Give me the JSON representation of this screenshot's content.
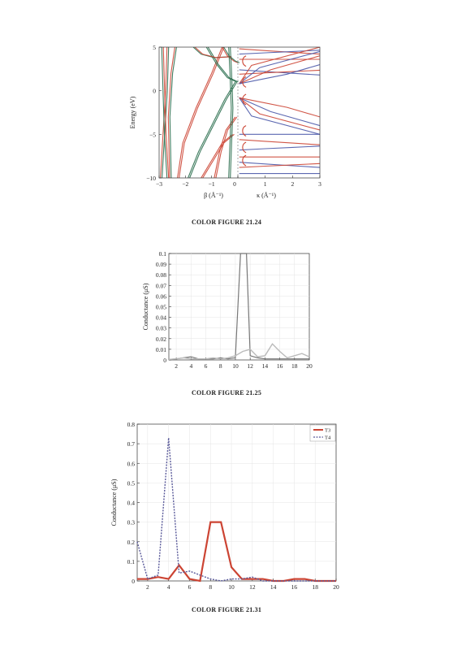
{
  "chart_data": [
    {
      "type": "line",
      "caption": "COLOR FIGURE 21.24",
      "ylabel": "Energy (eV)",
      "left_xlabel": "β (Å⁻¹)",
      "right_xlabel": "κ (Å⁻¹)",
      "left_xlim": [
        -3,
        0
      ],
      "right_xlim": [
        0,
        3
      ],
      "ylim": [
        -10,
        5
      ],
      "left_xticks": [
        "−3",
        "−2",
        "−1",
        "0"
      ],
      "right_xticks": [
        "0",
        "1",
        "2",
        "3"
      ],
      "yticks": [
        "5",
        "0",
        "−5",
        "−10"
      ],
      "colors": {
        "red": "#cc4433",
        "green": "#2a6e4e",
        "blue": "#4a58a8"
      }
    },
    {
      "type": "line",
      "caption": "COLOR FIGURE 21.25",
      "ylabel": "Conductance (μS)",
      "xlim": [
        1,
        20
      ],
      "ylim": [
        0,
        0.1
      ],
      "xticks": [
        "2",
        "4",
        "6",
        "8",
        "10",
        "12",
        "14",
        "16",
        "18",
        "20"
      ],
      "yticks": [
        "0",
        "0.01",
        "0.02",
        "0.03",
        "0.04",
        "0.05",
        "0.06",
        "0.07",
        "0.08",
        "0.09",
        "0.1"
      ],
      "series": [
        {
          "color": "#777777",
          "x": [
            1,
            2,
            3,
            4,
            5,
            6,
            7,
            8,
            9,
            10,
            10.7,
            11.5,
            12,
            13,
            14,
            15,
            16,
            17,
            18,
            19,
            20
          ],
          "y": [
            0.0005,
            0.001,
            0.002,
            0.003,
            0.001,
            0.001,
            0.001,
            0.002,
            0.001,
            0.002,
            0.1,
            0.1,
            0.004,
            0.002,
            0.001,
            0.001,
            0.001,
            0.001,
            0.001,
            0.001,
            0.001
          ]
        },
        {
          "color": "#bbbbbb",
          "x": [
            1,
            2,
            3,
            4,
            5,
            6,
            7,
            8,
            9,
            10,
            11,
            12,
            13,
            14,
            15,
            16,
            17,
            18,
            19,
            20
          ],
          "y": [
            0.0005,
            0.001,
            0.002,
            0.001,
            0.001,
            0.001,
            0.002,
            0.001,
            0.002,
            0.004,
            0.008,
            0.01,
            0.003,
            0.004,
            0.015,
            0.008,
            0.002,
            0.004,
            0.006,
            0.003
          ]
        }
      ]
    },
    {
      "type": "line",
      "caption": "COLOR FIGURE 21.31",
      "ylabel": "Conductance (μS)",
      "xlim": [
        1,
        20
      ],
      "ylim": [
        0,
        0.8
      ],
      "xticks": [
        "2",
        "4",
        "6",
        "8",
        "10",
        "12",
        "14",
        "16",
        "18",
        "20"
      ],
      "yticks": [
        "0",
        "0.1",
        "0.2",
        "0.3",
        "0.4",
        "0.5",
        "0.6",
        "0.7",
        "0.8"
      ],
      "legend": "top-right",
      "series": [
        {
          "name": "T3",
          "color": "#cc4433",
          "x": [
            1,
            2,
            3,
            4,
            5,
            6,
            7,
            8,
            9,
            10,
            11,
            12,
            13,
            14,
            15,
            16,
            17,
            18,
            19,
            20
          ],
          "y": [
            0.01,
            0.01,
            0.02,
            0.01,
            0.08,
            0.01,
            0.0,
            0.3,
            0.3,
            0.07,
            0.01,
            0.01,
            0.01,
            0.0,
            0.0,
            0.01,
            0.01,
            0.0,
            0.0,
            0.0
          ]
        },
        {
          "name": "T4",
          "color": "#5a5a9a",
          "x": [
            1,
            2,
            3,
            4,
            5,
            6,
            7,
            8,
            9,
            10,
            11,
            12,
            13,
            14,
            15,
            16,
            17,
            18,
            19,
            20
          ],
          "y": [
            0.2,
            0.01,
            0.03,
            0.73,
            0.04,
            0.05,
            0.03,
            0.01,
            0.0,
            0.01,
            0.01,
            0.02,
            0.0,
            0.0,
            0.0,
            0.0,
            0.0,
            0.0,
            0.0,
            0.0
          ]
        }
      ]
    }
  ]
}
